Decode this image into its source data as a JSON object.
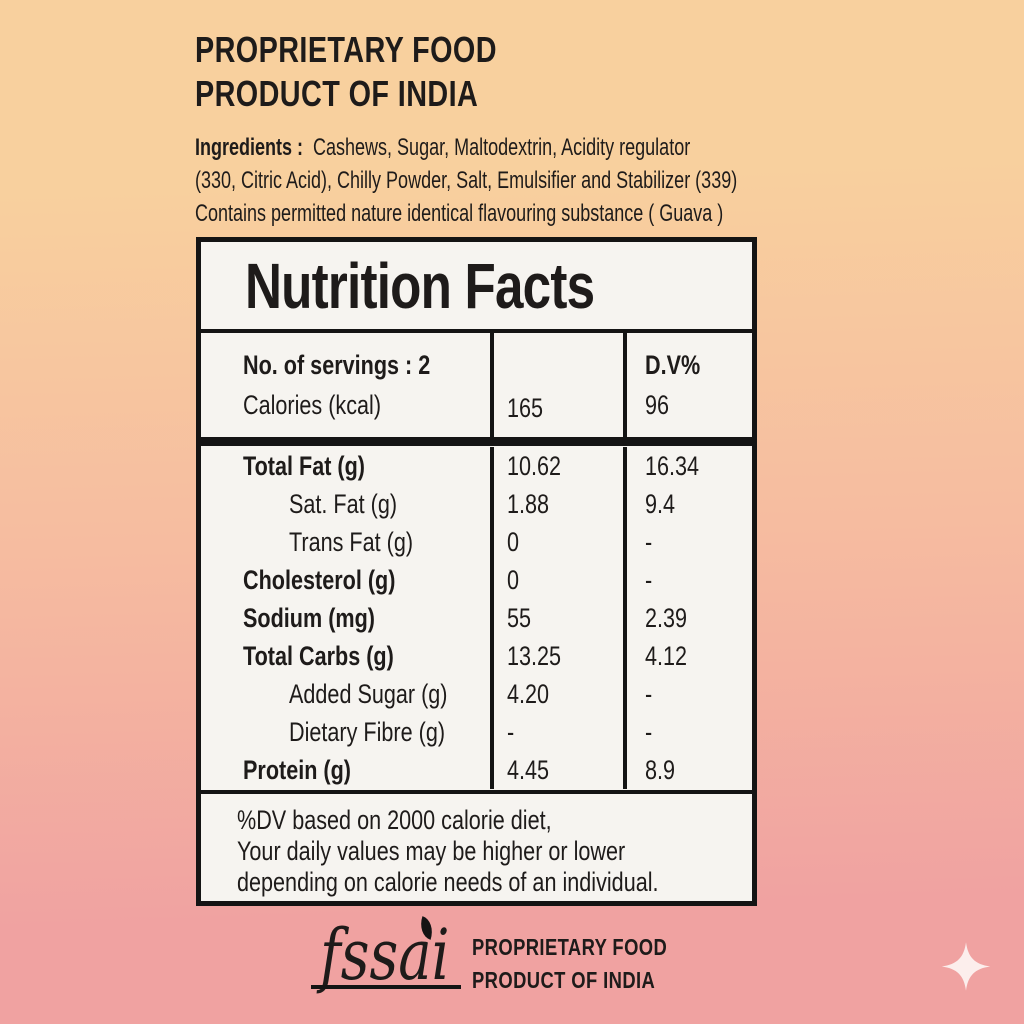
{
  "colors": {
    "background_top": "#f8d09e",
    "background_mid": "#f6bca0",
    "background_bottom": "#f0a2a1",
    "panel_background": "#f6f4f0",
    "border": "#141414",
    "text": "#1e1b1a",
    "sparkle": "#fceeec"
  },
  "header": {
    "title_line1": "PROPRIETARY FOOD",
    "title_line2": "PRODUCT OF INDIA",
    "ingredients": {
      "label": "Ingredients :",
      "line1_rest": "Cashews, Sugar, Maltodextrin, Acidity regulator",
      "line2": "(330, Citric Acid), Chilly Powder, Salt, Emulsifier and Stabilizer (339)",
      "line3": "Contains permitted nature identical flavouring substance ( Guava )"
    }
  },
  "nutrition_table": {
    "title": "Nutrition Facts",
    "servings_label": "No. of servings : 2",
    "calories_label": "Calories (kcal)",
    "calories_value": "165",
    "dv_header": "D.V%",
    "calories_dv": "96",
    "rows": [
      {
        "label": "Total Fat (g)",
        "value": "10.62",
        "dv": "16.34",
        "bold": true,
        "indent": false
      },
      {
        "label": "Sat. Fat (g)",
        "value": "1.88",
        "dv": "9.4",
        "bold": false,
        "indent": true
      },
      {
        "label": "Trans Fat (g)",
        "value": "0",
        "dv": "-",
        "bold": false,
        "indent": true
      },
      {
        "label": "Cholesterol (g)",
        "value": "0",
        "dv": "-",
        "bold": true,
        "indent": false
      },
      {
        "label": "Sodium (mg)",
        "value": "55",
        "dv": "2.39",
        "bold": true,
        "indent": false
      },
      {
        "label": "Total Carbs (g)",
        "value": "13.25",
        "dv": "4.12",
        "bold": true,
        "indent": false
      },
      {
        "label": "Added Sugar (g)",
        "value": "4.20",
        "dv": "-",
        "bold": false,
        "indent": true
      },
      {
        "label": "Dietary Fibre (g)",
        "value": "-",
        "dv": "-",
        "bold": false,
        "indent": true
      },
      {
        "label": "Protein (g)",
        "value": "4.45",
        "dv": "8.9",
        "bold": true,
        "indent": false
      }
    ],
    "footnote_lines": [
      "%DV based on 2000 calorie diet,",
      "Your daily values may be higher or lower",
      "depending on calorie needs of an individual."
    ]
  },
  "footer": {
    "fssai_logo_text": "fssai",
    "brand_line1": "PROPRIETARY FOOD",
    "brand_line2": "PRODUCT OF INDIA"
  }
}
